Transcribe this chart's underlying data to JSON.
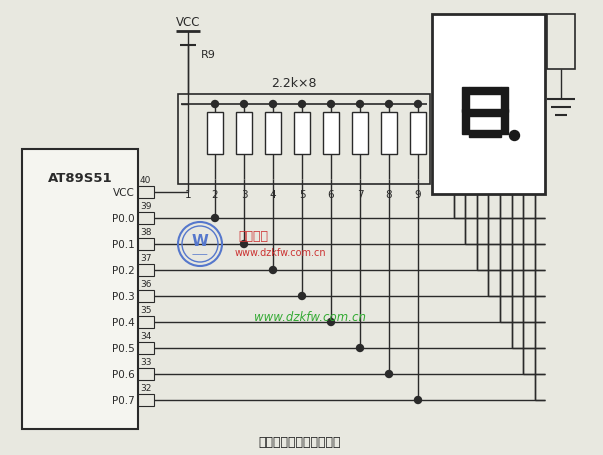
{
  "title": "八路键控数码管显示制作",
  "vcc_label": "VCC",
  "r9_label": "R9",
  "resistor_label": "2.2k×8",
  "chip_label": "AT89S51",
  "pin_numbers": [
    40,
    39,
    38,
    37,
    36,
    35,
    34,
    33,
    32
  ],
  "pin_labels": [
    "VCC",
    "P0.0",
    "P0.1",
    "P0.2",
    "P0.3",
    "P0.4",
    "P0.5",
    "P0.6",
    "P0.7"
  ],
  "bg_color": "#e8e8e0",
  "line_color": "#2a2a2a",
  "watermark_color1": "#cc3333",
  "watermark_color2": "#33aa33",
  "figsize": [
    6.03,
    4.56
  ],
  "dpi": 100
}
